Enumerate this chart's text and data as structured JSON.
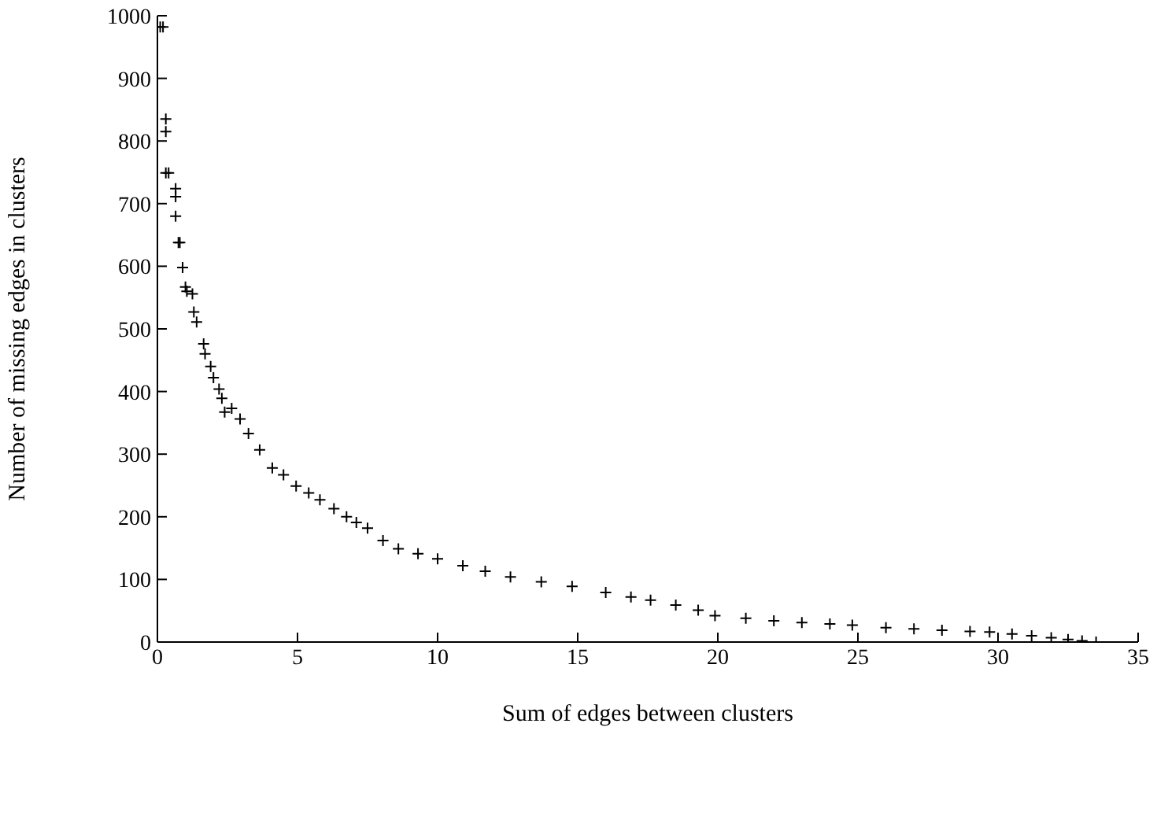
{
  "chart_data": {
    "type": "scatter",
    "xlabel": "Sum of edges between clusters",
    "ylabel": "Number of missing edges in clusters",
    "marker": "cross",
    "grid": false,
    "legend": false,
    "xlim": [
      0,
      35
    ],
    "xticks": [
      0,
      5,
      10,
      15,
      20,
      25,
      30,
      35
    ],
    "ylim": [
      0,
      1000
    ],
    "yticks": [
      0,
      100,
      200,
      300,
      400,
      500,
      600,
      700,
      800,
      900,
      1000
    ],
    "series": [
      {
        "color": "#000000",
        "x": [
          0.1,
          0.2,
          0.3,
          0.3,
          0.3,
          0.4,
          0.65,
          0.65,
          0.65,
          0.75,
          0.8,
          0.9,
          1.0,
          1.05,
          1.25,
          1.3,
          1.4,
          1.65,
          1.7,
          1.9,
          2.0,
          2.2,
          2.3,
          2.4,
          2.65,
          2.95,
          3.25,
          3.65,
          4.1,
          4.5,
          4.95,
          5.4,
          5.8,
          6.3,
          6.75,
          7.1,
          7.5,
          8.05,
          8.6,
          9.3,
          10.0,
          10.9,
          11.7,
          12.6,
          13.7,
          14.8,
          16.0,
          16.9,
          17.6,
          18.5,
          19.3,
          19.9,
          21.0,
          22.0,
          23.0,
          24.0,
          24.8,
          26.0,
          27.0,
          28.0,
          29.0,
          29.7,
          30.5,
          31.2,
          31.9,
          32.5,
          33.0,
          33.5
        ],
        "values": [
          982,
          982,
          835,
          815,
          749,
          749,
          724,
          711,
          680,
          638,
          638,
          598,
          567,
          560,
          556,
          527,
          511,
          476,
          460,
          440,
          422,
          404,
          389,
          367,
          373,
          356,
          333,
          307,
          278,
          267,
          249,
          238,
          227,
          213,
          200,
          191,
          182,
          162,
          149,
          141,
          133,
          122,
          113,
          104,
          96,
          89,
          79,
          72,
          67,
          59,
          51,
          42,
          38,
          34,
          31,
          29,
          27,
          23,
          21,
          19,
          17,
          16,
          13,
          10,
          7,
          4,
          2,
          0
        ]
      }
    ]
  }
}
